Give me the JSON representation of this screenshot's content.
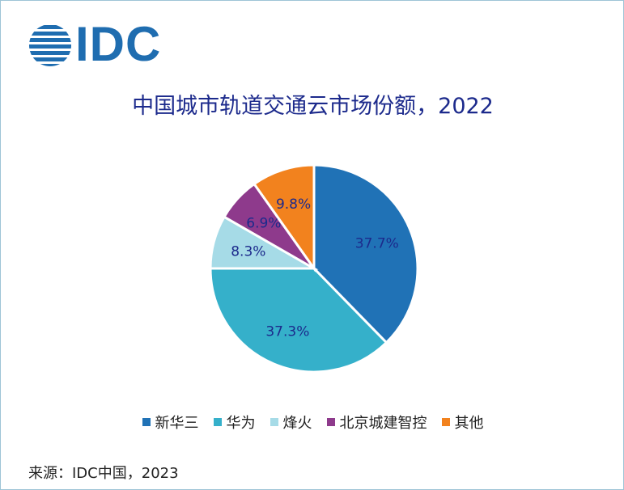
{
  "brand": {
    "logo_text": "IDC",
    "color": "#1f6db0"
  },
  "chart_data": {
    "type": "pie",
    "title": "中国城市轨道交通云市场份额，2022",
    "start_angle_deg": 0,
    "direction": "clockwise",
    "slices": [
      {
        "name": "新华三",
        "value": 37.7,
        "label": "37.7%",
        "color": "#2072b6"
      },
      {
        "name": "华为",
        "value": 37.3,
        "label": "37.3%",
        "color": "#35b0ca"
      },
      {
        "name": "烽火",
        "value": 8.3,
        "label": "8.3%",
        "color": "#a6dbe7"
      },
      {
        "name": "北京城建智控",
        "value": 6.9,
        "label": "6.9%",
        "color": "#8e3a8c"
      },
      {
        "name": "其他",
        "value": 9.8,
        "label": "9.8%",
        "color": "#f2821e"
      }
    ],
    "legend_position": "bottom",
    "label_color": "#1c2a8c"
  },
  "source": "来源：IDC中国，2023"
}
